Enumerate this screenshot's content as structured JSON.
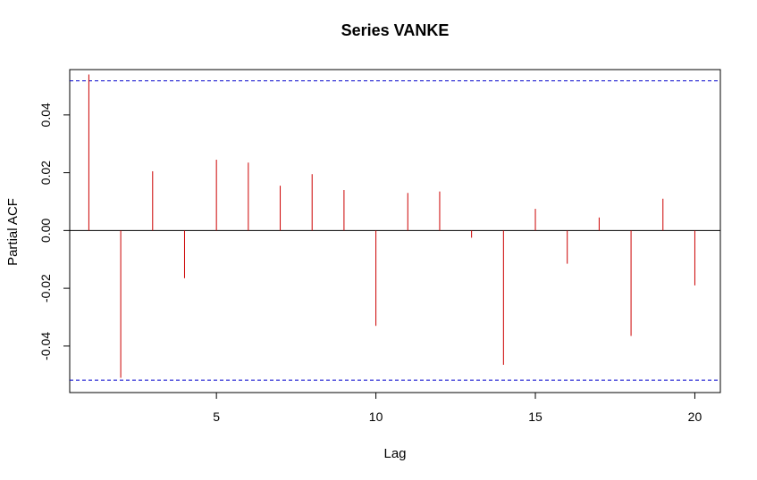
{
  "chart_data": {
    "type": "bar",
    "title": "Series VANKE",
    "xlabel": "Lag",
    "ylabel": "Partial ACF",
    "x": [
      1,
      2,
      3,
      4,
      5,
      6,
      7,
      8,
      9,
      10,
      11,
      12,
      13,
      14,
      15,
      16,
      17,
      18,
      19,
      20
    ],
    "values": [
      0.054,
      -0.051,
      0.0205,
      -0.0165,
      0.0245,
      0.0235,
      0.0155,
      0.0195,
      0.014,
      -0.033,
      0.013,
      0.0135,
      -0.0025,
      -0.0465,
      0.0075,
      -0.0115,
      0.0045,
      -0.0365,
      0.011,
      -0.019
    ],
    "confidence_bounds": [
      0.0518,
      -0.0518
    ],
    "xlim": [
      0.4,
      20.8
    ],
    "ylim": [
      -0.0561,
      0.0557
    ],
    "xticks": [
      5,
      10,
      15,
      20
    ],
    "yticks": [
      "-0.04",
      "-0.02",
      "0.00",
      "0.02",
      "0.04"
    ],
    "colors": {
      "bars": "#cc0000",
      "bounds": "#0000cc",
      "zero_line": "#000000",
      "frame": "#000000"
    },
    "grid": false
  }
}
